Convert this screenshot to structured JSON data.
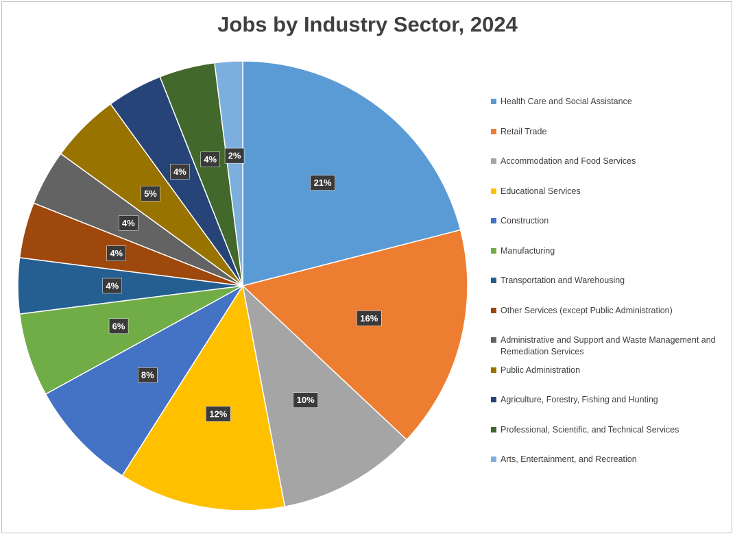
{
  "chart_data": {
    "type": "pie",
    "title": "Jobs by Industry Sector, 2024",
    "legend_position": "right",
    "slices": [
      {
        "name": "Health Care and Social Assistance",
        "value": 21,
        "label": "21%",
        "color": "#5b9bd5"
      },
      {
        "name": "Retail Trade",
        "value": 16,
        "label": "16%",
        "color": "#ed7d31"
      },
      {
        "name": "Accommodation and Food Services",
        "value": 10,
        "label": "10%",
        "color": "#a5a5a5"
      },
      {
        "name": "Educational Services",
        "value": 12,
        "label": "12%",
        "color": "#ffc000"
      },
      {
        "name": "Construction",
        "value": 8,
        "label": "8%",
        "color": "#4472c4"
      },
      {
        "name": "Manufacturing",
        "value": 6,
        "label": "6%",
        "color": "#70ad47"
      },
      {
        "name": "Transportation and Warehousing",
        "value": 4,
        "label": "4%",
        "color": "#255e91"
      },
      {
        "name": "Other Services (except Public Administration)",
        "value": 4,
        "label": "4%",
        "color": "#9e480e"
      },
      {
        "name": "Administrative and Support and Waste Management and Remediation Services",
        "value": 4,
        "label": "4%",
        "color": "#636363"
      },
      {
        "name": "Public Administration",
        "value": 5,
        "label": "5%",
        "color": "#997300"
      },
      {
        "name": "Agriculture, Forestry, Fishing and Hunting",
        "value": 4,
        "label": "4%",
        "color": "#264478"
      },
      {
        "name": "Professional, Scientific, and Technical Services",
        "value": 4,
        "label": "4%",
        "color": "#43682b"
      },
      {
        "name": "Arts, Entertainment, and Recreation",
        "value": 2,
        "label": "2%",
        "color": "#7cafdd"
      }
    ]
  }
}
